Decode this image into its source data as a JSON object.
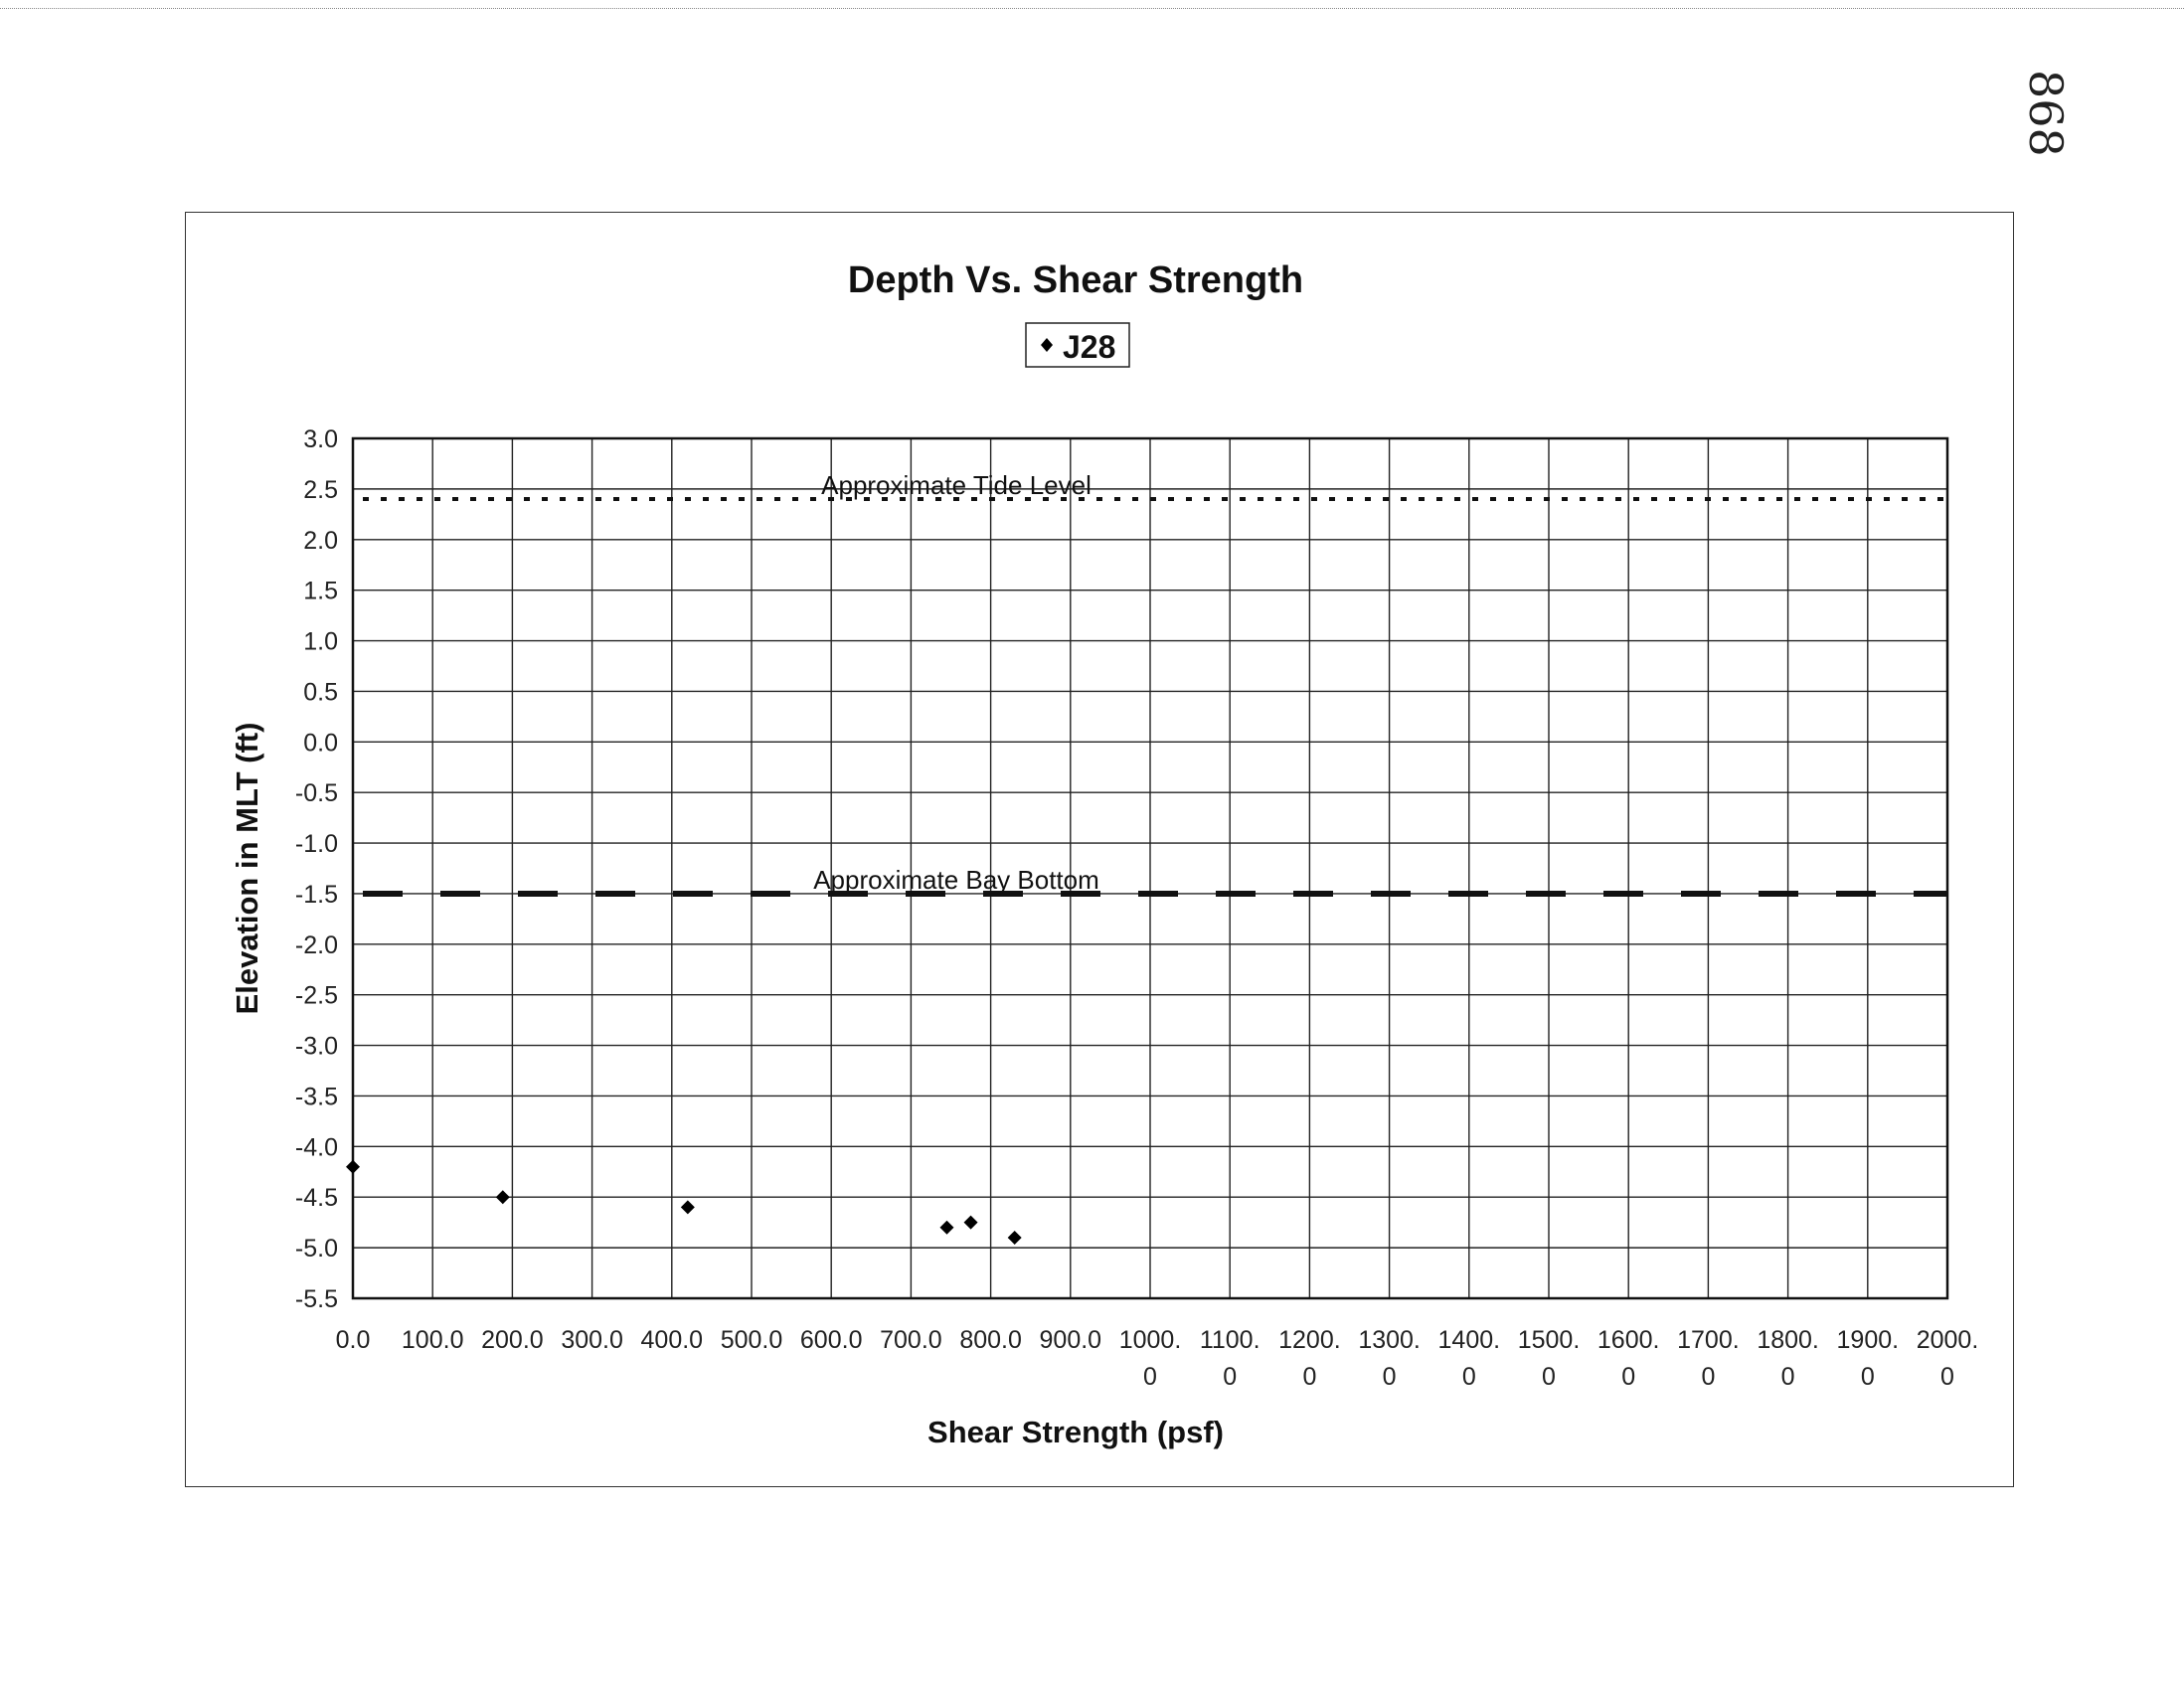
{
  "page_note": "868",
  "chart_data": {
    "type": "scatter",
    "title": "Depth Vs. Shear Strength",
    "xlabel": "Shear Strength (psf)",
    "ylabel": "Elevation in MLT (ft)",
    "xlim": [
      0,
      2000
    ],
    "ylim": [
      -5.5,
      3.0
    ],
    "x_step": 100,
    "y_step": 0.5,
    "grid": true,
    "legend": "top-center",
    "x_tick_labels": [
      [
        "0.0"
      ],
      [
        "100.0"
      ],
      [
        "200.0"
      ],
      [
        "300.0"
      ],
      [
        "400.0"
      ],
      [
        "500.0"
      ],
      [
        "600.0"
      ],
      [
        "700.0"
      ],
      [
        "800.0"
      ],
      [
        "900.0"
      ],
      [
        "1000.",
        "0"
      ],
      [
        "1100.",
        "0"
      ],
      [
        "1200.",
        "0"
      ],
      [
        "1300.",
        "0"
      ],
      [
        "1400.",
        "0"
      ],
      [
        "1500.",
        "0"
      ],
      [
        "1600.",
        "0"
      ],
      [
        "1700.",
        "0"
      ],
      [
        "1800.",
        "0"
      ],
      [
        "1900.",
        "0"
      ],
      [
        "2000.",
        "0"
      ]
    ],
    "y_tick_labels": [
      "3.0",
      "2.5",
      "2.0",
      "1.5",
      "1.0",
      "0.5",
      "0.0",
      "-0.5",
      "-1.0",
      "-1.5",
      "-2.0",
      "-2.5",
      "-3.0",
      "-3.5",
      "-4.0",
      "-4.5",
      "-5.0",
      "-5.5"
    ],
    "series": [
      {
        "name": "J28",
        "marker": "diamond",
        "color": "#000000",
        "points": [
          {
            "x": 0,
            "y": -4.2
          },
          {
            "x": 188,
            "y": -4.5
          },
          {
            "x": 420,
            "y": -4.6
          },
          {
            "x": 745,
            "y": -4.8
          },
          {
            "x": 775,
            "y": -4.75
          },
          {
            "x": 830,
            "y": -4.9
          }
        ]
      }
    ],
    "reference_lines": [
      {
        "label": "Approximate Tide Level",
        "y": 2.4,
        "style": "dotted"
      },
      {
        "label": "Approximate Bay Bottom",
        "y": -1.5,
        "style": "dashed"
      }
    ]
  }
}
